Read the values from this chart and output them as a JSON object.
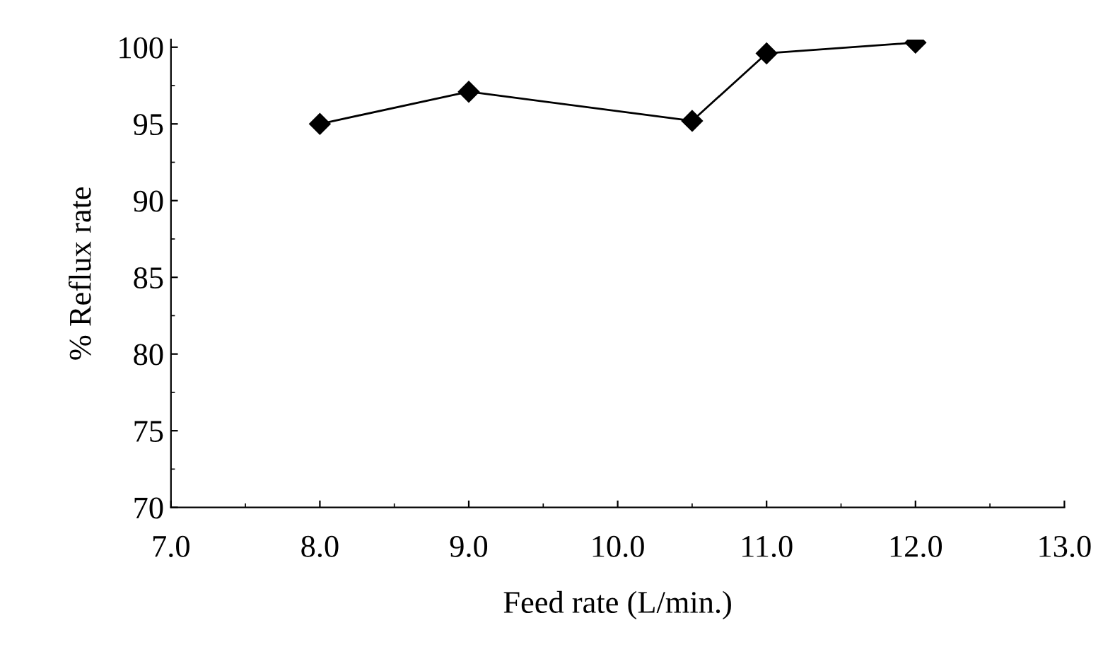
{
  "chart_data": {
    "type": "line",
    "xlabel": "Feed rate (L/min.)",
    "ylabel": "% Reflux rate",
    "x": [
      8.0,
      9.0,
      10.5,
      11.0,
      12.0
    ],
    "series": [
      {
        "color": "#000000",
        "values": [
          95.0,
          97.1,
          95.2,
          99.6,
          100.3
        ]
      }
    ],
    "xlim": [
      7.0,
      13.0
    ],
    "xticks": [
      {
        "value": 7.0,
        "label": "7.0"
      },
      {
        "value": 8.0,
        "label": "8.0"
      },
      {
        "value": 9.0,
        "label": "9.0"
      },
      {
        "value": 10.0,
        "label": "10.0"
      },
      {
        "value": 11.0,
        "label": "11.0"
      },
      {
        "value": 12.0,
        "label": "12.0"
      },
      {
        "value": 13.0,
        "label": "13.0"
      }
    ],
    "ylim": [
      70,
      100.5
    ],
    "yticks": [
      70,
      75,
      80,
      85,
      90,
      95,
      100
    ],
    "marker": "diamond",
    "line_style": "solid",
    "grid": false,
    "legend": false
  }
}
